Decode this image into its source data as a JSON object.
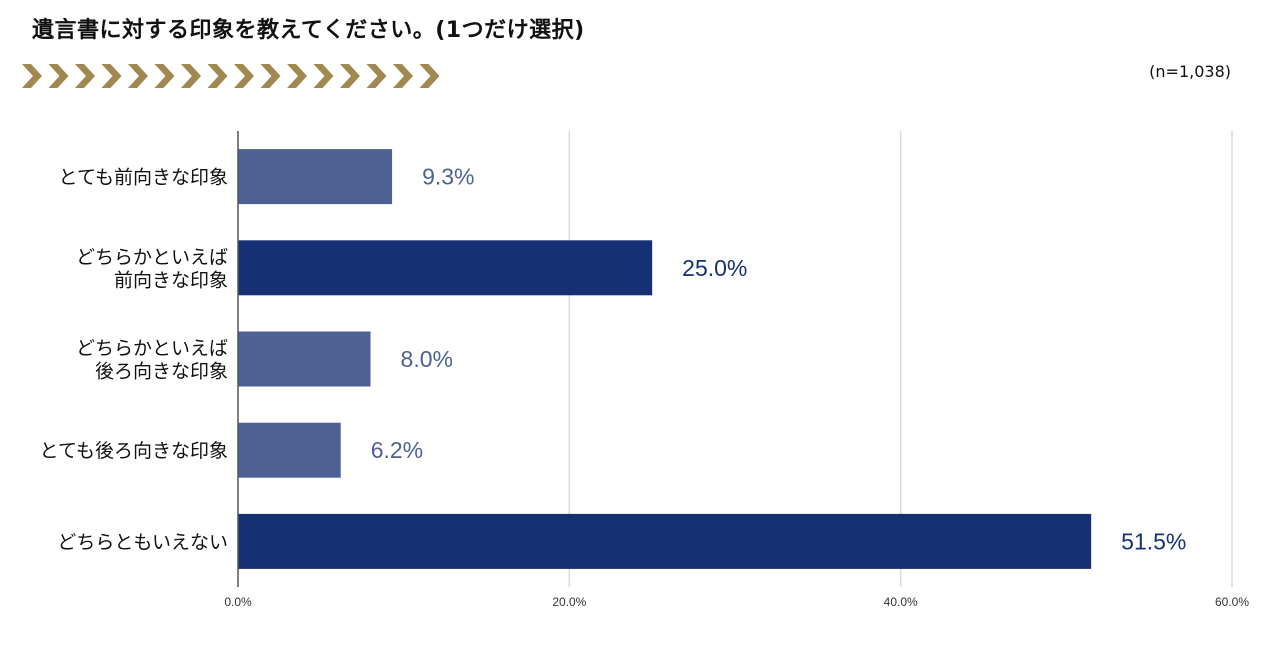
{
  "title": "遺言書に対する印象を教えてください。(1つだけ選択)",
  "sample_size": "(n=1,038)",
  "decoration": {
    "chevron_icon_count": 16,
    "chevron_color": "#A08850"
  },
  "colors": {
    "bar_light": "#4D6192",
    "bar_dark": "#163173"
  },
  "chart_data": {
    "type": "bar",
    "orientation": "horizontal",
    "categories": [
      [
        "とても前向きな印象"
      ],
      [
        "どちらかといえば",
        "前向きな印象"
      ],
      [
        "どちらかといえば",
        "後ろ向きな印象"
      ],
      [
        "とても後ろ向きな印象"
      ],
      [
        "どちらともいえない"
      ]
    ],
    "values": [
      9.3,
      25.0,
      8.0,
      6.2,
      51.5
    ],
    "value_labels": [
      "9.3%",
      "25.0%",
      "8.0%",
      "6.2%",
      "51.5%"
    ],
    "bar_color_keys": [
      "bar_light",
      "bar_dark",
      "bar_light",
      "bar_light",
      "bar_dark"
    ],
    "xlim": [
      0,
      60
    ],
    "x_ticks": [
      0,
      20,
      40,
      60
    ],
    "x_tick_labels": [
      "0.0%",
      "20.0%",
      "40.0%",
      "60.0%"
    ],
    "grid": true,
    "legend": "none"
  }
}
